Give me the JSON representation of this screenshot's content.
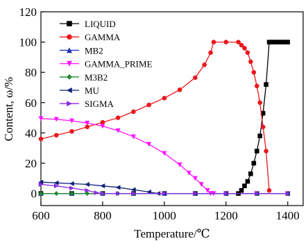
{
  "chart_data": {
    "type": "line",
    "xlabel": "Temperature/℃",
    "ylabel": "Content, ω/%",
    "xlim": [
      600,
      1450
    ],
    "ylim": [
      -8,
      120
    ],
    "xticks": [
      600,
      800,
      1000,
      1200,
      1400
    ],
    "yticks": [
      0,
      20,
      40,
      60,
      80,
      100,
      120
    ],
    "grid": false,
    "legend_position": "top-left",
    "series": [
      {
        "name": "LIQUID",
        "color": "#000000",
        "marker": "square",
        "x": [
          600,
          700,
          800,
          900,
          1000,
          1100,
          1200,
          1240,
          1250,
          1260,
          1270,
          1280,
          1290,
          1300,
          1310,
          1320,
          1330,
          1340,
          1350,
          1360,
          1370,
          1380,
          1390,
          1400
        ],
        "y": [
          0,
          0,
          0,
          0,
          0,
          0,
          0,
          0,
          2,
          5,
          8,
          13,
          20,
          28,
          38,
          53,
          72,
          100,
          100,
          100,
          100,
          100,
          100,
          100
        ]
      },
      {
        "name": "GAMMA",
        "color": "#e8191c",
        "marker": "circle",
        "x": [
          600,
          650,
          700,
          750,
          800,
          850,
          900,
          950,
          1000,
          1050,
          1100,
          1130,
          1150,
          1160,
          1200,
          1240,
          1250,
          1260,
          1270,
          1280,
          1290,
          1300,
          1310,
          1320,
          1330,
          1340
        ],
        "y": [
          36,
          38.5,
          41,
          44,
          47,
          50,
          54,
          58.5,
          63,
          68.5,
          76.5,
          85,
          93,
          100,
          100,
          100,
          98,
          96,
          93,
          87,
          80,
          71,
          60,
          44,
          28,
          2
        ]
      },
      {
        "name": "MB2",
        "color": "#1f2fb5",
        "marker": "triangle-up",
        "x": [
          600,
          700,
          800,
          900,
          1000,
          1100,
          1200,
          1300,
          1400
        ],
        "y": [
          0,
          0,
          0,
          0,
          0,
          0,
          0,
          0,
          0
        ]
      },
      {
        "name": "GAMMA_PRIME",
        "color": "#ff14ff",
        "marker": "triangle-down",
        "x": [
          600,
          650,
          700,
          750,
          800,
          850,
          900,
          950,
          1000,
          1050,
          1080,
          1100,
          1120,
          1140,
          1150,
          1160,
          1200,
          1300,
          1400
        ],
        "y": [
          49.5,
          49,
          48,
          46.5,
          44.5,
          41.5,
          37.5,
          32.5,
          26.5,
          19,
          13.5,
          10,
          6,
          2,
          0,
          0,
          0,
          0,
          0
        ]
      },
      {
        "name": "M3B2",
        "color": "#1d8a2c",
        "marker": "diamond",
        "x": [
          600,
          650,
          700,
          750,
          800,
          850,
          900,
          1000,
          1100,
          1200,
          1300,
          1400
        ],
        "y": [
          0,
          0,
          0,
          0,
          0,
          0,
          0,
          0,
          0,
          0,
          0,
          0
        ]
      },
      {
        "name": "MU",
        "color": "#10217a",
        "marker": "triangle-left",
        "x": [
          600,
          650,
          700,
          750,
          800,
          850,
          900,
          950,
          980,
          1000,
          1100,
          1200,
          1300,
          1400
        ],
        "y": [
          7.5,
          7,
          6.5,
          6,
          5,
          4,
          2.5,
          1,
          0,
          0,
          0,
          0,
          0,
          0
        ]
      },
      {
        "name": "SIGMA",
        "color": "#8a2be2",
        "marker": "triangle-right",
        "x": [
          600,
          650,
          700,
          750,
          780,
          800,
          850,
          900,
          1000,
          1100,
          1200,
          1300,
          1400
        ],
        "y": [
          6,
          5,
          3.5,
          2,
          0.5,
          0,
          0,
          0,
          0,
          0,
          0,
          0,
          0
        ]
      }
    ]
  }
}
